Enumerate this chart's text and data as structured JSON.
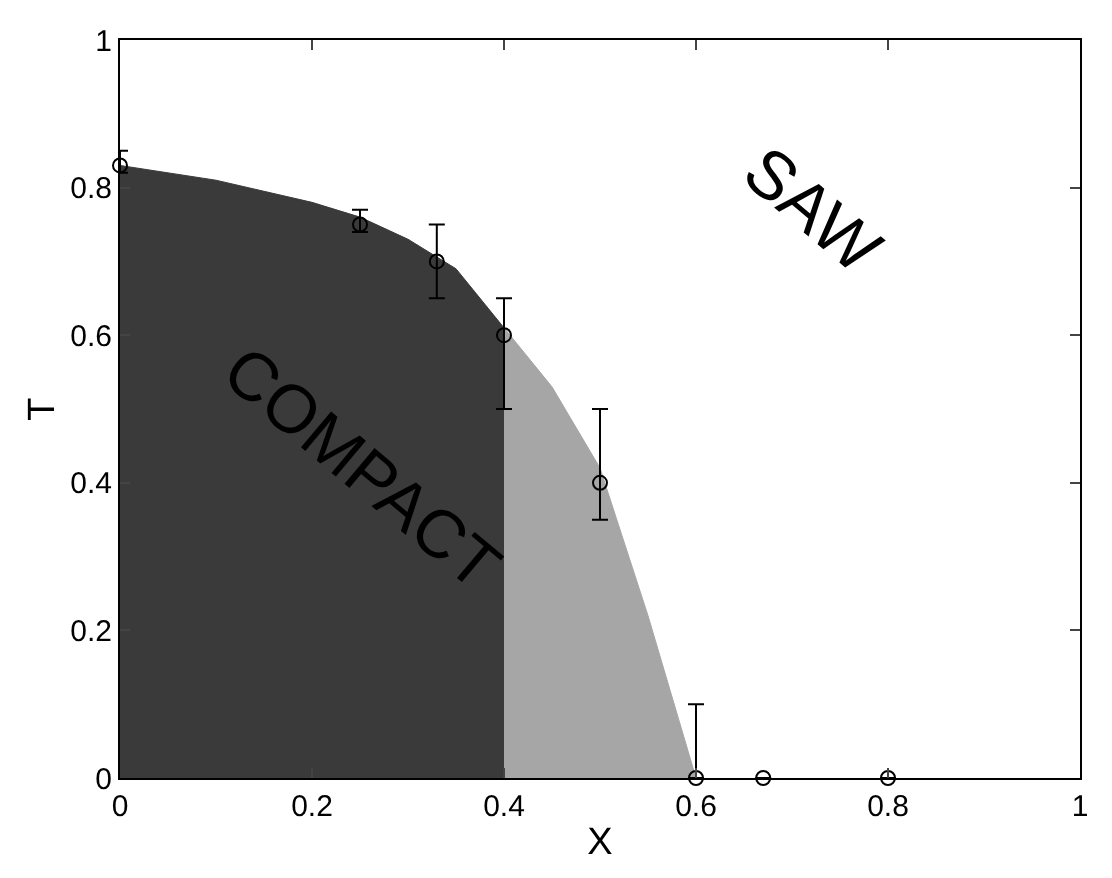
{
  "chart_data": {
    "type": "area",
    "xlabel": "X",
    "ylabel": "T",
    "xlim": [
      0,
      1
    ],
    "ylim": [
      0,
      1
    ],
    "xticks": [
      0,
      0.2,
      0.4,
      0.6,
      0.8,
      1
    ],
    "yticks": [
      0,
      0.2,
      0.4,
      0.6,
      0.8,
      1
    ],
    "series": [
      {
        "color": "#3a3a3a",
        "x": [
          0,
          0.1,
          0.2,
          0.25,
          0.3,
          0.35,
          0.4
        ],
        "values": [
          0.83,
          0.81,
          0.78,
          0.76,
          0.73,
          0.69,
          0.61
        ]
      },
      {
        "color": "#a6a6a6",
        "x": [
          0.4,
          0.45,
          0.5,
          0.55,
          0.6
        ],
        "values": [
          0.61,
          0.53,
          0.42,
          0.22,
          0
        ]
      },
      {
        "type": "scatter",
        "color": "#000000",
        "marker": "circle",
        "x": [
          0,
          0.25,
          0.33,
          0.4,
          0.5,
          0.6,
          0.67,
          0.8
        ],
        "values": [
          0.83,
          0.75,
          0.7,
          0.6,
          0.4,
          0,
          0,
          0
        ],
        "errors": [
          [
            0.82,
            0.85
          ],
          [
            0.74,
            0.77
          ],
          [
            0.65,
            0.75
          ],
          [
            0.5,
            0.65
          ],
          [
            0.35,
            0.5
          ],
          [
            0,
            0.1
          ],
          null,
          null
        ]
      }
    ],
    "annotations": [
      "COMPACT",
      "SAW"
    ]
  }
}
